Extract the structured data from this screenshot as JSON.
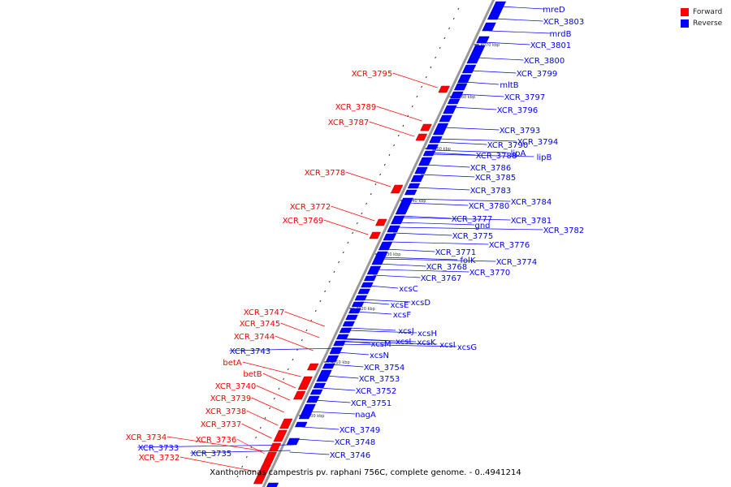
{
  "colors": {
    "forward": "#ff0000",
    "reverse": "#0000ff",
    "backbone": "#999999"
  },
  "legend": [
    {
      "label": "Forward",
      "color": "#ff0000"
    },
    {
      "label": "Reverse",
      "color": "#0000ff"
    }
  ],
  "caption": "Xanthomonas campestris pv. raphani 756C, complete genome. - 0..4941214",
  "scale_ticks": [
    "4070 kbp",
    "4060 kbp",
    "4050 kbp",
    "4040 kbp",
    "4030 kbp",
    "4020 kbp",
    "4010 kbp",
    "4000 kbp"
  ],
  "genes_reverse": [
    "mreD",
    "XCR_3803",
    "mrdB",
    "XCR_3801",
    "XCR_3800",
    "XCR_3799",
    "mltB",
    "XCR_3797",
    "XCR_3796",
    "XCR_3793",
    "XCR_3794",
    "XCR_3790",
    "lipA",
    "lipB",
    "XCR_3788",
    "XCR_3786",
    "XCR_3785",
    "XCR_3783",
    "XCR_3784",
    "XCR_3780",
    "XCR_3781",
    "gnd",
    "XCR_3777",
    "XCR_3782",
    "XCR_3775",
    "XCR_3776",
    "XCR_3771",
    "folK",
    "XCR_3774",
    "XCR_3768",
    "XCR_3770",
    "XCR_3767",
    "xcsC",
    "xcsD",
    "xcsE",
    "xcsF",
    "xcsJ",
    "xcsH",
    "xcsL",
    "xcsK",
    "xcsI",
    "xcsG",
    "xcsM",
    "xcsN",
    "XCR_3754",
    "XCR_3753",
    "XCR_3752",
    "XCR_3751",
    "nagA",
    "XCR_3749",
    "XCR_3748",
    "XCR_3746",
    "XCR_3743",
    "XCR_3733",
    "XCR_3735"
  ],
  "genes_forward": [
    "XCR_3795",
    "XCR_3789",
    "XCR_3787",
    "XCR_3778",
    "XCR_3772",
    "XCR_3769",
    "XCR_3747",
    "XCR_3745",
    "XCR_3744",
    "betA",
    "betB",
    "XCR_3740",
    "XCR_3739",
    "XCR_3738",
    "XCR_3737",
    "XCR_3736",
    "XCR_3734",
    "XCR_3732"
  ]
}
